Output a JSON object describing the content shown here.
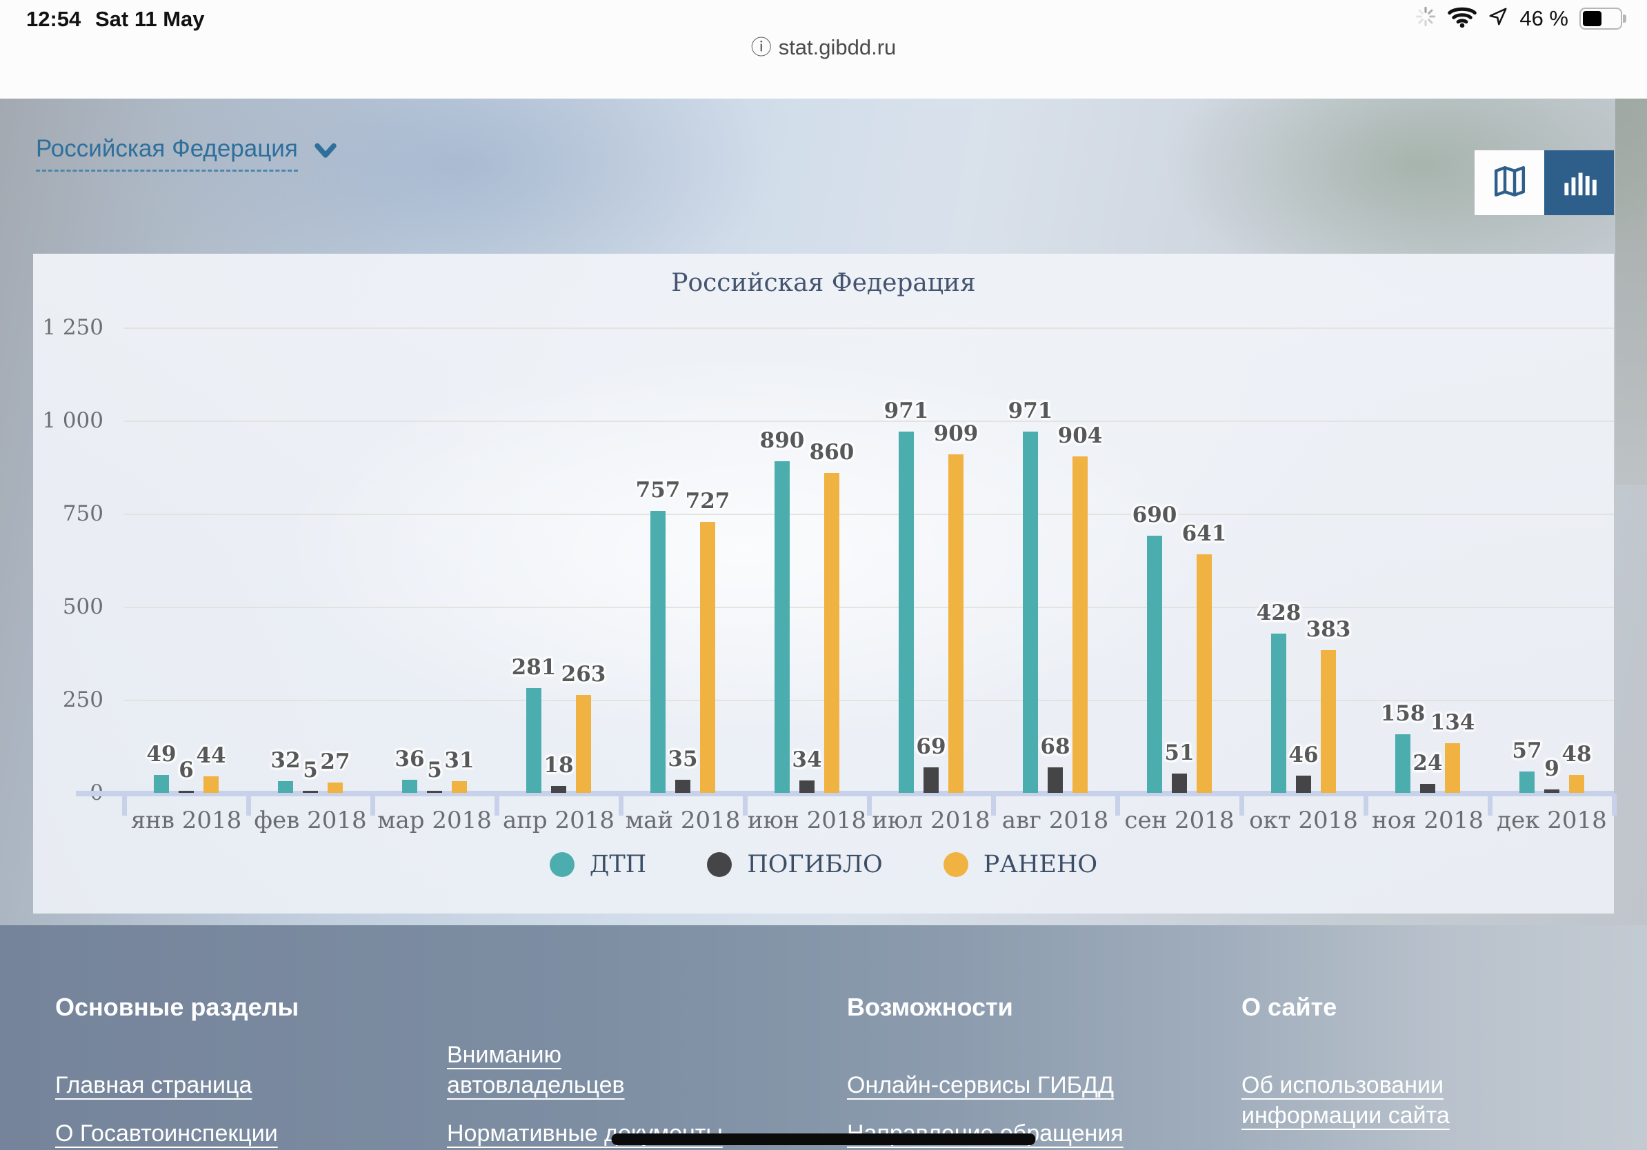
{
  "status_bar": {
    "time": "12:54",
    "date": "Sat 11 May",
    "battery_percent": "46 %"
  },
  "browser": {
    "url": "stat.gibdd.ru"
  },
  "page": {
    "region_selector": {
      "label": "Российская Федерация"
    }
  },
  "chart_data": {
    "type": "bar",
    "title": "Российская Федерация",
    "categories": [
      "янв 2018",
      "фев 2018",
      "мар 2018",
      "апр 2018",
      "май 2018",
      "июн 2018",
      "июл 2018",
      "авг 2018",
      "сен 2018",
      "окт 2018",
      "ноя 2018",
      "дек 2018"
    ],
    "series": [
      {
        "id": "dtp",
        "name": "ДТП",
        "color": "#4cadaf",
        "values": [
          49,
          32,
          36,
          281,
          757,
          890,
          971,
          971,
          690,
          428,
          158,
          57
        ]
      },
      {
        "id": "pogiblo",
        "name": "ПОГИБЛО",
        "color": "#454547",
        "values": [
          6,
          5,
          5,
          18,
          35,
          34,
          69,
          68,
          51,
          46,
          24,
          9
        ]
      },
      {
        "id": "raneno",
        "name": "РАНЕНО",
        "color": "#f0b240",
        "values": [
          44,
          27,
          31,
          263,
          727,
          860,
          909,
          904,
          641,
          383,
          134,
          48
        ]
      }
    ],
    "ylim": [
      0,
      1250
    ],
    "yticks": [
      {
        "value": 0,
        "label": "0"
      },
      {
        "value": 250,
        "label": "250"
      },
      {
        "value": 500,
        "label": "500"
      },
      {
        "value": 750,
        "label": "750"
      },
      {
        "value": 1000,
        "label": "1 000"
      },
      {
        "value": 1250,
        "label": "1 250"
      }
    ],
    "grid": true,
    "legend_position": "bottom"
  },
  "footer": {
    "columns": [
      {
        "heading": "Основные разделы",
        "links": [
          "Главная страница",
          "О Госавтоинспекции"
        ]
      },
      {
        "heading": "",
        "links": [
          "Вниманию автовладельцев",
          "Нормативные документы"
        ]
      },
      {
        "heading": "Возможности",
        "links": [
          "Онлайн-сервисы ГИБДД",
          "Направление обращения"
        ]
      },
      {
        "heading": "О сайте",
        "links": [
          "Об использовании информации сайта"
        ]
      }
    ]
  }
}
